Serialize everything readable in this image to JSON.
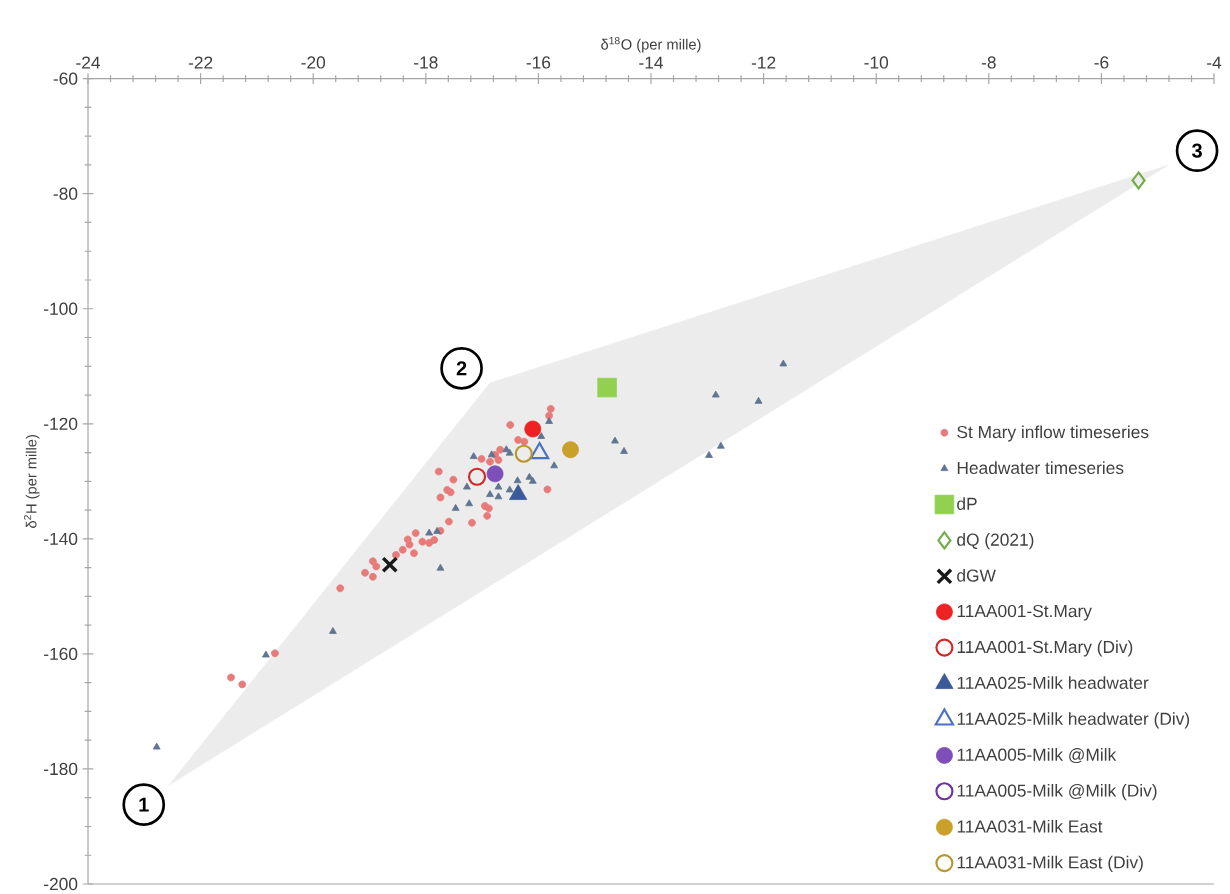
{
  "chart_data": {
    "type": "scatter",
    "xlabel": "δ$^{18}$O (per mille)",
    "ylabel": "δ$^{2}$H (per mille)",
    "xlim": [
      -24,
      -4
    ],
    "ylim": [
      -200,
      -60
    ],
    "xticks": [
      -24,
      -22,
      -20,
      -18,
      -16,
      -14,
      -12,
      -10,
      -8,
      -6,
      -4
    ],
    "yticks": [
      -200,
      -180,
      -160,
      -140,
      -120,
      -100,
      -80,
      -60
    ],
    "grid": false,
    "legend": "bottom right",
    "annotations": [
      {
        "text": "1",
        "x": -22.56,
        "y": -182.8
      },
      {
        "text": "2",
        "x": -16.86,
        "y": -112.9
      },
      {
        "text": "3",
        "x": -4.81,
        "y": -75.0
      }
    ],
    "series": [
      {
        "name": "St Mary inflow timeseries",
        "color": "#e87a7a",
        "marker": "circle",
        "x": [
          -15.78,
          -15.81,
          -16.5,
          -16.36,
          -16.25,
          -16.68,
          -16.77,
          -17.01,
          -16.86,
          -16.71,
          -17.77,
          -17.51,
          -17.62,
          -17.56,
          -17.74,
          -15.84,
          -16.95,
          -16.88,
          -16.91,
          -17.18,
          -17.59,
          -17.74,
          -17.85,
          -18.18,
          -18.32,
          -18.06,
          -18.29,
          -18.41,
          -18.21,
          -18.53,
          -18.94,
          -18.88,
          -19.08,
          -18.94,
          -19.52,
          -17.94,
          -20.68,
          -21.46,
          -21.26
        ],
        "values": [
          -117.4,
          -118.6,
          -120.2,
          -122.8,
          -123.1,
          -124.5,
          -125.4,
          -126.1,
          -126.6,
          -126.3,
          -128.3,
          -129.7,
          -131.5,
          -131.9,
          -132.8,
          -131.4,
          -134.3,
          -134.7,
          -136.0,
          -137.2,
          -137.0,
          -138.6,
          -140.2,
          -139.0,
          -140.1,
          -140.5,
          -141.0,
          -141.9,
          -142.5,
          -142.8,
          -143.9,
          -144.8,
          -145.9,
          -146.6,
          -148.6,
          -140.7,
          -159.9,
          -164.1,
          -165.3
        ]
      },
      {
        "name": "Headwater timeseries",
        "color": "#5f7591",
        "marker": "triangle",
        "x": [
          -15.81,
          -15.95,
          -17.15,
          -16.83,
          -16.57,
          -16.51,
          -15.72,
          -17.27,
          -16.71,
          -16.86,
          -16.71,
          -16.37,
          -16.51,
          -16.16,
          -16.1,
          -17.47,
          -17.23,
          -17.94,
          -17.8,
          -17.74,
          -19.65,
          -20.84,
          -22.78,
          -11.65,
          -12.85,
          -12.09,
          -14.64,
          -14.48,
          -12.76,
          -12.97
        ],
        "values": [
          -119.6,
          -122.2,
          -125.7,
          -125.4,
          -124.5,
          -125.1,
          -127.3,
          -131.0,
          -131.0,
          -132.3,
          -132.7,
          -129.9,
          -131.5,
          -129.3,
          -130.0,
          -134.7,
          -133.9,
          -139.0,
          -138.7,
          -145.1,
          -156.1,
          -160.2,
          -176.2,
          -109.6,
          -115.0,
          -116.1,
          -123.0,
          -124.8,
          -123.9,
          -125.5
        ]
      },
      {
        "name": "dP",
        "color": "#92d050",
        "marker": "square",
        "x": [
          -14.78
        ],
        "values": [
          -113.7
        ]
      },
      {
        "name": "dQ (2021)",
        "color": "#70ad47",
        "marker": "diamond",
        "x": [
          -5.34
        ],
        "values": [
          -77.7
        ]
      },
      {
        "name": "dGW",
        "color": "#1a1a1a",
        "marker": "cross",
        "x": [
          -18.64
        ],
        "values": [
          -144.5
        ]
      },
      {
        "name": "11AA001-St.Mary",
        "color": "#ee2222",
        "marker": "circle",
        "x": [
          -16.1
        ],
        "values": [
          -120.9
        ]
      },
      {
        "name": "11AA001-St.Mary (Div)",
        "color": "#d42525",
        "marker": "circle",
        "x": [
          -17.09
        ],
        "values": [
          -129.2
        ]
      },
      {
        "name": "11AA025-Milk headwater",
        "color": "#3b5a9a",
        "marker": "triangle",
        "x": [
          -16.36
        ],
        "values": [
          -132.3
        ]
      },
      {
        "name": "11AA025-Milk headwater (Div)",
        "color": "#4a72c0",
        "marker": "triangle",
        "x": [
          -15.98
        ],
        "values": [
          -125.1
        ]
      },
      {
        "name": "11AA005-Milk @Milk",
        "color": "#7e4fb8",
        "marker": "circle",
        "x": [
          -16.77
        ],
        "values": [
          -128.7
        ]
      },
      {
        "name": "11AA005-Milk @Milk (Div)",
        "color": "#7030a0",
        "marker": "circle",
        "x": [
          null
        ],
        "values": [
          null
        ]
      },
      {
        "name": "11AA031-Milk East",
        "color": "#c9a02a",
        "marker": "circle",
        "x": [
          -15.43
        ],
        "values": [
          -124.5
        ]
      },
      {
        "name": "11AA031-Milk East (Div)",
        "color": "#b8962e",
        "marker": "circle",
        "x": [
          -16.26
        ],
        "values": [
          -125.2
        ]
      },
      {
        "type": "area",
        "color": "#ececec",
        "x": [
          -22.56,
          -16.86,
          -4.81
        ],
        "values": [
          -182.8,
          -112.9,
          -75.0
        ]
      }
    ]
  }
}
